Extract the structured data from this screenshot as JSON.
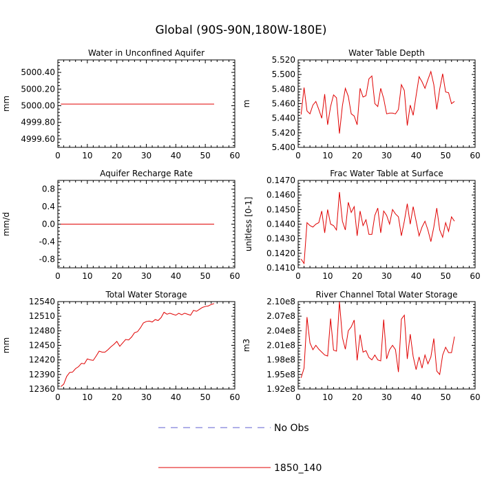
{
  "page": {
    "title": "Global (90S-90N,180W-180E)"
  },
  "legend": [
    {
      "label": "No Obs",
      "color": "#5f5fd0",
      "dash": true
    },
    {
      "label": "1850_140",
      "color": "#e00000",
      "dash": false
    }
  ],
  "chart_data": [
    {
      "type": "line",
      "title": "Water in Unconfined Aquifer",
      "ylabel": "mm",
      "xlabel": "",
      "xlim": [
        0,
        60
      ],
      "ylim": [
        4999.5,
        5000.55
      ],
      "xticks": [
        0,
        10,
        20,
        30,
        40,
        50,
        60
      ],
      "yticks": [
        4999.6,
        4999.8,
        5000.0,
        5000.2,
        5000.4
      ],
      "ytick_labels": [
        "4999.60",
        "4999.80",
        "5000.00",
        "5000.20",
        "5000.40"
      ],
      "series": [
        {
          "color": "#e00000",
          "x": [
            1,
            2,
            3,
            4,
            5,
            6,
            7,
            8,
            9,
            10,
            11,
            12,
            13,
            14,
            15,
            16,
            17,
            18,
            19,
            20,
            21,
            22,
            23,
            24,
            25,
            26,
            27,
            28,
            29,
            30,
            31,
            32,
            33,
            34,
            35,
            36,
            37,
            38,
            39,
            40,
            41,
            42,
            43,
            44,
            45,
            46,
            47,
            48,
            49,
            50,
            51,
            52,
            53
          ],
          "y": [
            5000.02,
            5000.02,
            5000.02,
            5000.02,
            5000.02,
            5000.02,
            5000.02,
            5000.02,
            5000.02,
            5000.02,
            5000.02,
            5000.02,
            5000.02,
            5000.02,
            5000.02,
            5000.02,
            5000.02,
            5000.02,
            5000.02,
            5000.02,
            5000.02,
            5000.02,
            5000.02,
            5000.02,
            5000.02,
            5000.02,
            5000.02,
            5000.02,
            5000.02,
            5000.02,
            5000.02,
            5000.02,
            5000.02,
            5000.02,
            5000.02,
            5000.02,
            5000.02,
            5000.02,
            5000.02,
            5000.02,
            5000.02,
            5000.02,
            5000.02,
            5000.02,
            5000.02,
            5000.02,
            5000.02,
            5000.02,
            5000.02,
            5000.02,
            5000.02,
            5000.02,
            5000.02
          ]
        }
      ]
    },
    {
      "type": "line",
      "title": "Water Table Depth",
      "ylabel": "m",
      "xlabel": "",
      "xlim": [
        0,
        60
      ],
      "ylim": [
        5.4,
        5.52
      ],
      "xticks": [
        0,
        10,
        20,
        30,
        40,
        50,
        60
      ],
      "yticks": [
        5.4,
        5.42,
        5.44,
        5.46,
        5.48,
        5.5,
        5.52
      ],
      "ytick_labels": [
        "5.400",
        "5.420",
        "5.440",
        "5.460",
        "5.480",
        "5.500",
        "5.520"
      ],
      "series": [
        {
          "color": "#e00000",
          "x": [
            1,
            2,
            3,
            4,
            5,
            6,
            7,
            8,
            9,
            10,
            11,
            12,
            13,
            14,
            15,
            16,
            17,
            18,
            19,
            20,
            21,
            22,
            23,
            24,
            25,
            26,
            27,
            28,
            29,
            30,
            31,
            32,
            33,
            34,
            35,
            36,
            37,
            38,
            39,
            40,
            41,
            42,
            43,
            44,
            45,
            46,
            47,
            48,
            49,
            50,
            51,
            52,
            53
          ],
          "y": [
            5.445,
            5.482,
            5.45,
            5.446,
            5.458,
            5.463,
            5.452,
            5.44,
            5.473,
            5.431,
            5.456,
            5.472,
            5.468,
            5.419,
            5.457,
            5.481,
            5.47,
            5.446,
            5.443,
            5.431,
            5.481,
            5.469,
            5.471,
            5.494,
            5.498,
            5.46,
            5.456,
            5.481,
            5.467,
            5.446,
            5.447,
            5.447,
            5.446,
            5.452,
            5.486,
            5.478,
            5.43,
            5.458,
            5.444,
            5.471,
            5.497,
            5.49,
            5.481,
            5.493,
            5.504,
            5.486,
            5.452,
            5.48,
            5.501,
            5.476,
            5.475,
            5.46,
            5.463
          ]
        }
      ]
    },
    {
      "type": "line",
      "title": "Aquifer Recharge Rate",
      "ylabel": "mm/d",
      "xlabel": "",
      "xlim": [
        0,
        60
      ],
      "ylim": [
        -1.0,
        1.0
      ],
      "xticks": [
        0,
        10,
        20,
        30,
        40,
        50,
        60
      ],
      "yticks": [
        -0.8,
        -0.4,
        0.0,
        0.4,
        0.8
      ],
      "ytick_labels": [
        "-0.8",
        "-0.4",
        "0.0",
        "0.4",
        "0.8"
      ],
      "series": [
        {
          "color": "#e00000",
          "x": [
            1,
            2,
            3,
            4,
            5,
            6,
            7,
            8,
            9,
            10,
            11,
            12,
            13,
            14,
            15,
            16,
            17,
            18,
            19,
            20,
            21,
            22,
            23,
            24,
            25,
            26,
            27,
            28,
            29,
            30,
            31,
            32,
            33,
            34,
            35,
            36,
            37,
            38,
            39,
            40,
            41,
            42,
            43,
            44,
            45,
            46,
            47,
            48,
            49,
            50,
            51,
            52,
            53
          ],
          "y": [
            0,
            0,
            0,
            0,
            0,
            0,
            0,
            0,
            0,
            0,
            0,
            0,
            0,
            0,
            0,
            0,
            0,
            0,
            0,
            0,
            0,
            0,
            0,
            0,
            0,
            0,
            0,
            0,
            0,
            0,
            0,
            0,
            0,
            0,
            0,
            0,
            0,
            0,
            0,
            0,
            0,
            0,
            0,
            0,
            0,
            0,
            0,
            0,
            0,
            0,
            0,
            0,
            0
          ]
        }
      ]
    },
    {
      "type": "line",
      "title": "Frac Water Table at Surface",
      "ylabel": "unitless [0-1]",
      "xlabel": "",
      "xlim": [
        0,
        60
      ],
      "ylim": [
        0.141,
        0.147
      ],
      "xticks": [
        0,
        10,
        20,
        30,
        40,
        50,
        60
      ],
      "yticks": [
        0.141,
        0.142,
        0.143,
        0.144,
        0.145,
        0.146,
        0.147
      ],
      "ytick_labels": [
        "0.1410",
        "0.1420",
        "0.1430",
        "0.1440",
        "0.1450",
        "0.1460",
        "0.1470"
      ],
      "series": [
        {
          "color": "#e00000",
          "x": [
            1,
            2,
            3,
            4,
            5,
            6,
            7,
            8,
            9,
            10,
            11,
            12,
            13,
            14,
            15,
            16,
            17,
            18,
            19,
            20,
            21,
            22,
            23,
            24,
            25,
            26,
            27,
            28,
            29,
            30,
            31,
            32,
            33,
            34,
            35,
            36,
            37,
            38,
            39,
            40,
            41,
            42,
            43,
            44,
            45,
            46,
            47,
            48,
            49,
            50,
            51,
            52,
            53
          ],
          "y": [
            0.1416,
            0.1413,
            0.1441,
            0.1439,
            0.1438,
            0.144,
            0.1441,
            0.1449,
            0.1434,
            0.145,
            0.144,
            0.1439,
            0.1436,
            0.1462,
            0.1442,
            0.1436,
            0.1455,
            0.1448,
            0.1452,
            0.1432,
            0.1449,
            0.1439,
            0.1443,
            0.1433,
            0.1433,
            0.1446,
            0.1451,
            0.1434,
            0.1449,
            0.1446,
            0.144,
            0.145,
            0.1447,
            0.1445,
            0.1432,
            0.1442,
            0.1454,
            0.144,
            0.1452,
            0.1442,
            0.1432,
            0.1438,
            0.1442,
            0.1436,
            0.1428,
            0.1438,
            0.1451,
            0.1436,
            0.1431,
            0.1441,
            0.1435,
            0.1445,
            0.1442
          ]
        }
      ]
    },
    {
      "type": "line",
      "title": "Total Water Storage",
      "ylabel": "mm",
      "xlabel": "",
      "xlim": [
        0,
        60
      ],
      "ylim": [
        12360,
        12540
      ],
      "xticks": [
        0,
        10,
        20,
        30,
        40,
        50,
        60
      ],
      "yticks": [
        12360,
        12390,
        12420,
        12450,
        12480,
        12510,
        12540
      ],
      "ytick_labels": [
        "12360",
        "12390",
        "12420",
        "12450",
        "12480",
        "12510",
        "12540"
      ],
      "series": [
        {
          "color": "#e00000",
          "x": [
            1,
            2,
            3,
            4,
            5,
            6,
            7,
            8,
            9,
            10,
            11,
            12,
            13,
            14,
            15,
            16,
            17,
            18,
            19,
            20,
            21,
            22,
            23,
            24,
            25,
            26,
            27,
            28,
            29,
            30,
            31,
            32,
            33,
            34,
            35,
            36,
            37,
            38,
            39,
            40,
            41,
            42,
            43,
            44,
            45,
            46,
            47,
            48,
            49,
            50,
            51,
            52,
            53
          ],
          "y": [
            12365,
            12370,
            12386,
            12394,
            12395,
            12402,
            12406,
            12413,
            12412,
            12422,
            12420,
            12419,
            12428,
            12438,
            12436,
            12436,
            12441,
            12447,
            12452,
            12458,
            12448,
            12455,
            12462,
            12461,
            12467,
            12476,
            12478,
            12486,
            12496,
            12499,
            12500,
            12498,
            12503,
            12501,
            12507,
            12518,
            12514,
            12516,
            12514,
            12512,
            12516,
            12513,
            12516,
            12514,
            12512,
            12522,
            12520,
            12524,
            12528,
            12530,
            12531,
            12534,
            12536
          ]
        }
      ]
    },
    {
      "type": "line",
      "title": "River Channel Total Water Storage",
      "ylabel": "m3",
      "xlabel": "",
      "xlim": [
        0,
        60
      ],
      "ylim": [
        1.92,
        2.1
      ],
      "xticks": [
        0,
        10,
        20,
        30,
        40,
        50,
        60
      ],
      "yticks": [
        1.92,
        1.95,
        1.98,
        2.01,
        2.04,
        2.07,
        2.1
      ],
      "ytick_labels": [
        "1.92e8",
        "1.95e8",
        "1.98e8",
        "2.01e8",
        "2.04e8",
        "2.07e8",
        "2.10e8"
      ],
      "series": [
        {
          "color": "#e00000",
          "x": [
            1,
            2,
            3,
            4,
            5,
            6,
            7,
            8,
            9,
            10,
            11,
            12,
            13,
            14,
            15,
            16,
            17,
            18,
            19,
            20,
            21,
            22,
            23,
            24,
            25,
            26,
            27,
            28,
            29,
            30,
            31,
            32,
            33,
            34,
            35,
            36,
            37,
            38,
            39,
            40,
            41,
            42,
            43,
            44,
            45,
            46,
            47,
            48,
            49,
            50,
            51,
            52,
            53
          ],
          "y": [
            1.943,
            1.963,
            2.068,
            2.015,
            2.001,
            2.01,
            2.002,
            1.996,
            1.99,
            1.988,
            2.065,
            2.0,
            1.998,
            2.1,
            2.026,
            2.002,
            2.04,
            2.048,
            2.062,
            1.979,
            2.032,
            1.996,
            1.999,
            1.985,
            1.98,
            1.99,
            1.98,
            1.978,
            2.063,
            1.982,
            2.001,
            2.01,
            2.001,
            1.955,
            2.064,
            2.072,
            1.982,
            2.033,
            1.987,
            1.96,
            1.986,
            1.963,
            1.99,
            1.972,
            1.986,
            2.024,
            1.957,
            1.95,
            1.99,
            2.006,
            1.995,
            1.995,
            2.028
          ]
        }
      ]
    }
  ]
}
